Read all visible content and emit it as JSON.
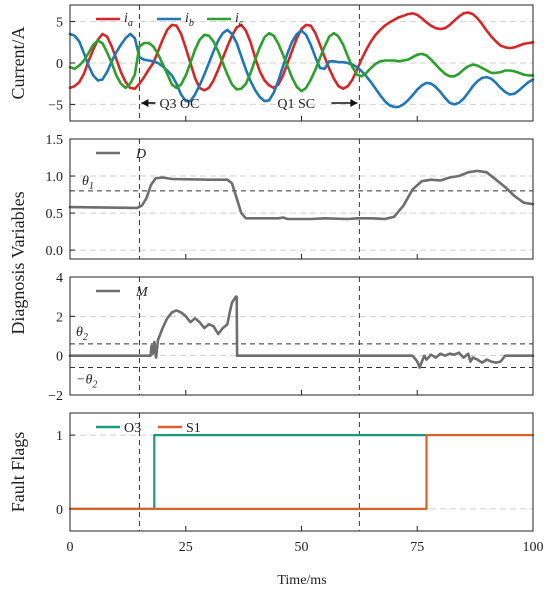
{
  "chart_data": [
    {
      "id": "currents",
      "type": "line",
      "ylabel": "Current/A",
      "ylim": [
        -7,
        7
      ],
      "yticks": [
        -5,
        0,
        5
      ],
      "grid": "dashed horizontal",
      "legend": {
        "placement": "top-left",
        "orientation": "horizontal"
      },
      "x": [
        0,
        1,
        2,
        3,
        4,
        5,
        6,
        7,
        8,
        9,
        10,
        11,
        12,
        13,
        14,
        15,
        16,
        17,
        18,
        19,
        20,
        21,
        22,
        23,
        24,
        25,
        26,
        27,
        28,
        29,
        30,
        31,
        32,
        33,
        34,
        35,
        36,
        37,
        38,
        39,
        40,
        41,
        42,
        43,
        44,
        45,
        46,
        47,
        48,
        49,
        50,
        51,
        52,
        53,
        54,
        55,
        56,
        57,
        58,
        59,
        60,
        61,
        62,
        63,
        64,
        65,
        66,
        67,
        68,
        69,
        70,
        71,
        72,
        73,
        74,
        75,
        76,
        77,
        78,
        79,
        80,
        81,
        82,
        83,
        84,
        85,
        86,
        87,
        88,
        89,
        90,
        91,
        92,
        93,
        94,
        95,
        96,
        97,
        98,
        99,
        100
      ],
      "series": [
        {
          "name": "i_a",
          "color": "#d62728",
          "values": [
            -3,
            -2.8,
            -2.3,
            -1.3,
            0.2,
            1.6,
            2.8,
            3.5,
            3.2,
            2,
            0.5,
            -1.1,
            -2.3,
            -3,
            -3.1,
            -2.5,
            -1.7,
            -0.8,
            0,
            1.4,
            2.8,
            4,
            4.6,
            4.5,
            3.5,
            1.8,
            0,
            -1.8,
            -3,
            -3.3,
            -3,
            -2.1,
            -0.8,
            0.6,
            2,
            3.3,
            4.3,
            4.6,
            3.9,
            2.5,
            0.6,
            -1,
            -2.1,
            -2.7,
            -3,
            -2.6,
            -1.5,
            0,
            1.5,
            3,
            4.1,
            4.6,
            4.5,
            3.6,
            2.2,
            0.7,
            -0.7,
            -1.9,
            -2.8,
            -3.1,
            -2.8,
            -2,
            -0.8,
            0.5,
            1.6,
            2.6,
            3.4,
            4,
            4.5,
            4.9,
            5.2,
            5.5,
            5.7,
            5.9,
            6,
            5.8,
            5.4,
            4.9,
            4.5,
            4.2,
            4.1,
            4.2,
            4.6,
            5.1,
            5.6,
            6,
            6.1,
            5.9,
            5.4,
            4.7,
            3.9,
            3.2,
            2.6,
            2.1,
            1.9,
            1.8,
            1.9,
            2.1,
            2.3,
            2.4,
            2.5
          ]
        },
        {
          "name": "i_b",
          "color": "#1f77b4",
          "values": [
            3.5,
            3.3,
            2.6,
            1.2,
            -0.3,
            -1.5,
            -2.1,
            -2,
            -1.1,
            0.2,
            1.3,
            2.2,
            3,
            3.5,
            3,
            0.7,
            0.4,
            0.3,
            0.2,
            0,
            -0.4,
            -0.9,
            -1.5,
            -2.5,
            -3.8,
            -4.6,
            -4.6,
            -3.8,
            -2.7,
            -1.4,
            0,
            1.4,
            2.7,
            3.6,
            4,
            3.5,
            2.4,
            0.8,
            -0.8,
            -2.2,
            -3.3,
            -4.1,
            -4.6,
            -4.5,
            -3.6,
            -2.1,
            -0.4,
            1.2,
            2.6,
            3.5,
            3.9,
            3.4,
            2.2,
            0.7,
            -0.6,
            -0.7,
            0.2,
            0.2,
            0.1,
            0.1,
            0,
            -0.2,
            -0.5,
            -1,
            -1.6,
            -2.3,
            -3.1,
            -3.9,
            -4.6,
            -5.1,
            -5.3,
            -5.3,
            -5,
            -4.5,
            -3.9,
            -3.2,
            -2.7,
            -2.4,
            -2.5,
            -2.9,
            -3.5,
            -4.2,
            -4.8,
            -5,
            -4.8,
            -4.3,
            -3.6,
            -2.8,
            -2.2,
            -1.8,
            -1.7,
            -1.9,
            -2.4,
            -3,
            -3.5,
            -3.8,
            -3.7,
            -3.3,
            -2.8,
            -2.3,
            -2
          ]
        },
        {
          "name": "i_c",
          "color": "#2ca02c",
          "values": [
            -0.5,
            -0.7,
            -0.3,
            0.3,
            1.2,
            2.2,
            2.7,
            2.4,
            1.3,
            0,
            -1.5,
            -2.5,
            -3,
            -2.5,
            -1.4,
            2,
            2.4,
            2.4,
            2,
            1.1,
            -0.1,
            -1.3,
            -2.6,
            -3,
            -2.6,
            -1.5,
            0,
            1.6,
            2.8,
            3.4,
            3.3,
            2.6,
            1.4,
            0,
            -1.4,
            -2.6,
            -3.2,
            -3.1,
            -2.5,
            -1.2,
            0.4,
            1.9,
            3.1,
            3.6,
            3.3,
            2.3,
            1,
            -0.4,
            -1.8,
            -2.9,
            -3.4,
            -3,
            -2,
            -0.8,
            0.6,
            2,
            3.2,
            3.6,
            3.2,
            2.2,
            0.8,
            -0.5,
            -1.4,
            -1.6,
            -1.2,
            -0.6,
            -0.1,
            0.2,
            0.3,
            0.3,
            0.3,
            0.2,
            0.3,
            0.4,
            0.7,
            1,
            1.1,
            0.9,
            0.4,
            -0.2,
            -0.8,
            -1.3,
            -1.6,
            -1.6,
            -1.3,
            -0.8,
            -0.4,
            -0.2,
            -0.3,
            -0.6,
            -0.9,
            -1.2,
            -1.2,
            -1.1,
            -0.9,
            -0.9,
            -1,
            -1.2,
            -1.4,
            -1.5,
            -1.5
          ]
        }
      ],
      "annotations": [
        {
          "text": "Q3 OC",
          "arrow": "left",
          "x_end": 15
        },
        {
          "text": "Q1 SC",
          "arrow": "right",
          "x_end": 62.5
        }
      ],
      "fault_lines_x": [
        15,
        62.5
      ]
    },
    {
      "id": "D",
      "type": "line",
      "ylabel": "Diagnosis Variables",
      "ylim": [
        -0.12,
        1.5
      ],
      "yticks": [
        0.0,
        0.5,
        1.0,
        1.5
      ],
      "ytick_labels": [
        "0.0",
        "0.5",
        "1.0",
        "1.5"
      ],
      "grid": "dashed horizontal",
      "legend": {
        "placement": "top-left"
      },
      "threshold": {
        "label": "θ1",
        "value": 0.8
      },
      "series": [
        {
          "name": "D",
          "color": "#6e6e6e",
          "points": [
            [
              0,
              0.58
            ],
            [
              14.5,
              0.57
            ],
            [
              15.5,
              0.6
            ],
            [
              16.5,
              0.7
            ],
            [
              17.5,
              0.88
            ],
            [
              18.5,
              0.97
            ],
            [
              20,
              0.98
            ],
            [
              22,
              0.96
            ],
            [
              30,
              0.95
            ],
            [
              34,
              0.95
            ],
            [
              35,
              0.9
            ],
            [
              36,
              0.7
            ],
            [
              37,
              0.5
            ],
            [
              38,
              0.43
            ],
            [
              45,
              0.43
            ],
            [
              46,
              0.44
            ],
            [
              47,
              0.42
            ],
            [
              52,
              0.42
            ],
            [
              55,
              0.43
            ],
            [
              60,
              0.42
            ],
            [
              62,
              0.43
            ],
            [
              65,
              0.43
            ],
            [
              68,
              0.42
            ],
            [
              70,
              0.45
            ],
            [
              72,
              0.6
            ],
            [
              74,
              0.82
            ],
            [
              76,
              0.93
            ],
            [
              78,
              0.95
            ],
            [
              80,
              0.94
            ],
            [
              82,
              0.98
            ],
            [
              84,
              1.0
            ],
            [
              86,
              1.05
            ],
            [
              88,
              1.07
            ],
            [
              90,
              1.05
            ],
            [
              92,
              0.95
            ],
            [
              94,
              0.85
            ],
            [
              96,
              0.73
            ],
            [
              98,
              0.64
            ],
            [
              100,
              0.62
            ]
          ]
        }
      ]
    },
    {
      "id": "M",
      "type": "line",
      "ylim": [
        -2,
        4
      ],
      "yticks": [
        -2,
        0,
        2,
        4
      ],
      "grid": "dashed horizontal",
      "legend": {
        "placement": "top-left"
      },
      "thresholds": [
        {
          "label": "θ2",
          "value": 0.6
        },
        {
          "label": "−θ2",
          "value": -0.6
        }
      ],
      "series": [
        {
          "name": "M",
          "color": "#6e6e6e",
          "points": [
            [
              0,
              0
            ],
            [
              17.4,
              0
            ],
            [
              17.6,
              0.5
            ],
            [
              17.9,
              0.1
            ],
            [
              18.2,
              0.7
            ],
            [
              18.6,
              -0.1
            ],
            [
              19,
              0.8
            ],
            [
              20,
              1.4
            ],
            [
              21,
              1.9
            ],
            [
              22,
              2.2
            ],
            [
              23,
              2.3
            ],
            [
              24,
              2.2
            ],
            [
              25,
              2.0
            ],
            [
              26,
              1.7
            ],
            [
              27,
              1.9
            ],
            [
              28,
              1.7
            ],
            [
              29,
              1.4
            ],
            [
              30,
              1.6
            ],
            [
              31,
              1.5
            ],
            [
              32,
              1.1
            ],
            [
              33,
              1.4
            ],
            [
              34,
              1.6
            ],
            [
              34.5,
              2.2
            ],
            [
              35,
              2.7
            ],
            [
              35.8,
              3.0
            ],
            [
              36,
              3.0
            ],
            [
              36.1,
              0
            ],
            [
              74,
              0
            ],
            [
              75,
              -0.3
            ],
            [
              75.5,
              -0.6
            ],
            [
              76,
              -0.3
            ],
            [
              76.5,
              0
            ],
            [
              77,
              -0.2
            ],
            [
              78,
              0.05
            ],
            [
              79,
              -0.1
            ],
            [
              80,
              0.1
            ],
            [
              81,
              0
            ],
            [
              82,
              0.1
            ],
            [
              83,
              0.05
            ],
            [
              84,
              0.15
            ],
            [
              85,
              -0.1
            ],
            [
              86,
              0.1
            ],
            [
              86.5,
              -0.3
            ],
            [
              87,
              -0.1
            ],
            [
              88,
              -0.2
            ],
            [
              89,
              -0.35
            ],
            [
              90,
              -0.2
            ],
            [
              91,
              -0.3
            ],
            [
              92,
              -0.35
            ],
            [
              93,
              -0.3
            ],
            [
              94,
              0
            ],
            [
              100,
              0
            ]
          ]
        }
      ]
    },
    {
      "id": "flags",
      "type": "line",
      "ylabel": "Fault Flags",
      "ylim": [
        -0.3,
        1.3
      ],
      "yticks": [
        0,
        1
      ],
      "grid": "dashed horizontal",
      "legend": {
        "placement": "top-left",
        "orientation": "horizontal"
      },
      "xlabel": "Time/ms",
      "xlim": [
        0,
        100
      ],
      "xticks": [
        0,
        25,
        50,
        75,
        100
      ],
      "series": [
        {
          "name": "O3",
          "color": "#1a9a7a",
          "points": [
            [
              0,
              0
            ],
            [
              18.2,
              0
            ],
            [
              18.2,
              1
            ],
            [
              77,
              1
            ]
          ]
        },
        {
          "name": "S1",
          "color": "#d9622b",
          "points": [
            [
              0,
              0
            ],
            [
              77,
              0
            ],
            [
              77,
              1
            ],
            [
              100,
              1
            ]
          ]
        }
      ]
    }
  ]
}
